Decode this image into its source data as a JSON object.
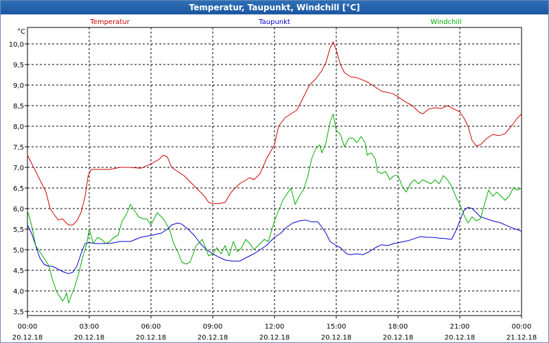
{
  "window_title": "Temperatur, Taupunkt, Windchill [°C]",
  "chart_data": {
    "type": "line",
    "title": "Temperatur, Taupunkt, Windchill [°C]",
    "ylabel": "°C",
    "xlabel": "",
    "ylim": [
      3.4,
      10.4
    ],
    "xlim": [
      0,
      24
    ],
    "grid": true,
    "y_ticks": [
      "3,5",
      "4,0",
      "4,5",
      "5,0",
      "5,5",
      "6,0",
      "6,5",
      "7,0",
      "7,5",
      "8,0",
      "8,5",
      "9,0",
      "9,5",
      "10,0"
    ],
    "y_tick_values": [
      3.5,
      4.0,
      4.5,
      5.0,
      5.5,
      6.0,
      6.5,
      7.0,
      7.5,
      8.0,
      8.5,
      9.0,
      9.5,
      10.0
    ],
    "x_tick_values": [
      0,
      3,
      6,
      9,
      12,
      15,
      18,
      21,
      24
    ],
    "x_tick_times": [
      "00:00",
      "03:00",
      "06:00",
      "09:00",
      "12:00",
      "15:00",
      "18:00",
      "21:00",
      "00:00"
    ],
    "x_tick_dates": [
      "20.12.18",
      "20.12.18",
      "20.12.18",
      "20.12.18",
      "20.12.18",
      "20.12.18",
      "20.12.18",
      "20.12.18",
      "21.12.18"
    ],
    "series": [
      {
        "name": "Temperatur",
        "color": "#cc0000",
        "points": [
          [
            0,
            7.3
          ],
          [
            0.3,
            7.0
          ],
          [
            0.6,
            6.7
          ],
          [
            0.9,
            6.4
          ],
          [
            1.0,
            6.2
          ],
          [
            1.1,
            6.0
          ],
          [
            1.3,
            5.85
          ],
          [
            1.5,
            5.72
          ],
          [
            1.7,
            5.75
          ],
          [
            1.9,
            5.65
          ],
          [
            2.0,
            5.6
          ],
          [
            2.2,
            5.6
          ],
          [
            2.4,
            5.7
          ],
          [
            2.6,
            5.9
          ],
          [
            2.8,
            6.3
          ],
          [
            2.95,
            6.8
          ],
          [
            3.1,
            6.95
          ],
          [
            3.5,
            6.95
          ],
          [
            4.0,
            6.95
          ],
          [
            4.5,
            7.0
          ],
          [
            5.0,
            7.0
          ],
          [
            5.5,
            6.98
          ],
          [
            6.0,
            7.08
          ],
          [
            6.4,
            7.2
          ],
          [
            6.6,
            7.3
          ],
          [
            6.8,
            7.25
          ],
          [
            7.0,
            7.0
          ],
          [
            7.3,
            6.9
          ],
          [
            7.6,
            6.8
          ],
          [
            8.0,
            6.6
          ],
          [
            8.3,
            6.45
          ],
          [
            8.6,
            6.3
          ],
          [
            8.8,
            6.15
          ],
          [
            9.0,
            6.12
          ],
          [
            9.3,
            6.12
          ],
          [
            9.6,
            6.15
          ],
          [
            9.9,
            6.4
          ],
          [
            10.3,
            6.6
          ],
          [
            10.8,
            6.75
          ],
          [
            11.0,
            6.7
          ],
          [
            11.3,
            6.85
          ],
          [
            11.6,
            7.2
          ],
          [
            12.0,
            7.55
          ],
          [
            12.2,
            8.0
          ],
          [
            12.5,
            8.2
          ],
          [
            12.8,
            8.3
          ],
          [
            13.1,
            8.4
          ],
          [
            13.4,
            8.7
          ],
          [
            13.7,
            9.0
          ],
          [
            14.0,
            9.15
          ],
          [
            14.3,
            9.35
          ],
          [
            14.5,
            9.55
          ],
          [
            14.7,
            9.9
          ],
          [
            14.85,
            10.05
          ],
          [
            15.0,
            9.85
          ],
          [
            15.2,
            9.5
          ],
          [
            15.4,
            9.3
          ],
          [
            15.7,
            9.2
          ],
          [
            16.0,
            9.18
          ],
          [
            16.3,
            9.12
          ],
          [
            16.6,
            9.05
          ],
          [
            16.9,
            8.95
          ],
          [
            17.2,
            8.85
          ],
          [
            17.5,
            8.82
          ],
          [
            17.8,
            8.78
          ],
          [
            18.1,
            8.68
          ],
          [
            18.4,
            8.58
          ],
          [
            18.7,
            8.5
          ],
          [
            19.0,
            8.35
          ],
          [
            19.2,
            8.3
          ],
          [
            19.5,
            8.42
          ],
          [
            19.8,
            8.45
          ],
          [
            20.1,
            8.43
          ],
          [
            20.4,
            8.5
          ],
          [
            20.7,
            8.42
          ],
          [
            21.0,
            8.35
          ],
          [
            21.2,
            8.2
          ],
          [
            21.4,
            8.0
          ],
          [
            21.6,
            7.65
          ],
          [
            21.8,
            7.52
          ],
          [
            22.0,
            7.55
          ],
          [
            22.3,
            7.7
          ],
          [
            22.6,
            7.8
          ],
          [
            22.9,
            7.77
          ],
          [
            23.2,
            7.82
          ],
          [
            23.5,
            8.0
          ],
          [
            23.8,
            8.2
          ],
          [
            24.0,
            8.3
          ]
        ]
      },
      {
        "name": "Taupunkt",
        "color": "#0000cc",
        "points": [
          [
            0,
            5.6
          ],
          [
            0.2,
            5.4
          ],
          [
            0.4,
            5.1
          ],
          [
            0.6,
            4.8
          ],
          [
            0.8,
            4.65
          ],
          [
            1.0,
            4.6
          ],
          [
            1.2,
            4.6
          ],
          [
            1.4,
            4.55
          ],
          [
            1.6,
            4.5
          ],
          [
            1.8,
            4.45
          ],
          [
            2.0,
            4.42
          ],
          [
            2.2,
            4.45
          ],
          [
            2.4,
            4.6
          ],
          [
            2.6,
            4.9
          ],
          [
            2.8,
            5.15
          ],
          [
            3.0,
            5.17
          ],
          [
            3.3,
            5.15
          ],
          [
            3.6,
            5.15
          ],
          [
            4.0,
            5.15
          ],
          [
            4.5,
            5.2
          ],
          [
            5.0,
            5.2
          ],
          [
            5.5,
            5.3
          ],
          [
            6.0,
            5.35
          ],
          [
            6.5,
            5.4
          ],
          [
            6.8,
            5.5
          ],
          [
            7.0,
            5.6
          ],
          [
            7.3,
            5.65
          ],
          [
            7.5,
            5.62
          ],
          [
            7.8,
            5.5
          ],
          [
            8.1,
            5.35
          ],
          [
            8.4,
            5.15
          ],
          [
            8.7,
            5.0
          ],
          [
            9.0,
            4.9
          ],
          [
            9.3,
            4.82
          ],
          [
            9.6,
            4.75
          ],
          [
            10.0,
            4.72
          ],
          [
            10.3,
            4.72
          ],
          [
            10.6,
            4.8
          ],
          [
            11.0,
            4.9
          ],
          [
            11.3,
            5.0
          ],
          [
            11.6,
            5.1
          ],
          [
            12.0,
            5.3
          ],
          [
            12.3,
            5.4
          ],
          [
            12.6,
            5.55
          ],
          [
            12.9,
            5.65
          ],
          [
            13.2,
            5.7
          ],
          [
            13.5,
            5.72
          ],
          [
            13.8,
            5.68
          ],
          [
            14.1,
            5.68
          ],
          [
            14.3,
            5.55
          ],
          [
            14.5,
            5.4
          ],
          [
            14.7,
            5.2
          ],
          [
            15.0,
            5.1
          ],
          [
            15.2,
            5.05
          ],
          [
            15.5,
            4.9
          ],
          [
            15.7,
            4.88
          ],
          [
            16.0,
            4.9
          ],
          [
            16.3,
            4.88
          ],
          [
            16.6,
            4.95
          ],
          [
            16.9,
            5.05
          ],
          [
            17.2,
            5.12
          ],
          [
            17.5,
            5.1
          ],
          [
            17.8,
            5.15
          ],
          [
            18.1,
            5.18
          ],
          [
            18.5,
            5.22
          ],
          [
            18.8,
            5.27
          ],
          [
            19.1,
            5.32
          ],
          [
            19.4,
            5.3
          ],
          [
            19.7,
            5.3
          ],
          [
            20.0,
            5.28
          ],
          [
            20.3,
            5.27
          ],
          [
            20.6,
            5.25
          ],
          [
            20.8,
            5.45
          ],
          [
            21.0,
            5.7
          ],
          [
            21.2,
            5.95
          ],
          [
            21.4,
            6.03
          ],
          [
            21.6,
            6.0
          ],
          [
            21.8,
            5.9
          ],
          [
            22.0,
            5.8
          ],
          [
            22.3,
            5.75
          ],
          [
            22.6,
            5.7
          ],
          [
            23.0,
            5.65
          ],
          [
            23.3,
            5.58
          ],
          [
            23.6,
            5.52
          ],
          [
            24.0,
            5.45
          ]
        ]
      },
      {
        "name": "Windchill",
        "color": "#00aa00",
        "points": [
          [
            0,
            5.95
          ],
          [
            0.2,
            5.6
          ],
          [
            0.4,
            5.1
          ],
          [
            0.6,
            4.95
          ],
          [
            0.8,
            4.8
          ],
          [
            1.0,
            4.65
          ],
          [
            1.1,
            4.5
          ],
          [
            1.2,
            4.3
          ],
          [
            1.3,
            4.15
          ],
          [
            1.4,
            4.0
          ],
          [
            1.5,
            3.9
          ],
          [
            1.6,
            3.85
          ],
          [
            1.7,
            3.75
          ],
          [
            1.8,
            3.82
          ],
          [
            1.9,
            3.95
          ],
          [
            2.0,
            3.7
          ],
          [
            2.1,
            3.85
          ],
          [
            2.3,
            4.1
          ],
          [
            2.5,
            4.45
          ],
          [
            2.7,
            4.85
          ],
          [
            2.8,
            5.0
          ],
          [
            2.9,
            5.2
          ],
          [
            3.0,
            5.5
          ],
          [
            3.2,
            5.15
          ],
          [
            3.4,
            5.3
          ],
          [
            3.6,
            5.25
          ],
          [
            3.8,
            5.15
          ],
          [
            4.0,
            5.2
          ],
          [
            4.2,
            5.3
          ],
          [
            4.4,
            5.35
          ],
          [
            4.6,
            5.7
          ],
          [
            4.8,
            5.85
          ],
          [
            5.0,
            6.1
          ],
          [
            5.2,
            5.95
          ],
          [
            5.4,
            5.8
          ],
          [
            5.6,
            5.75
          ],
          [
            5.8,
            5.75
          ],
          [
            6.0,
            5.6
          ],
          [
            6.3,
            5.9
          ],
          [
            6.6,
            5.75
          ],
          [
            6.9,
            5.5
          ],
          [
            7.1,
            5.15
          ],
          [
            7.3,
            4.95
          ],
          [
            7.5,
            4.7
          ],
          [
            7.7,
            4.65
          ],
          [
            7.9,
            4.7
          ],
          [
            8.2,
            5.1
          ],
          [
            8.5,
            5.25
          ],
          [
            8.8,
            4.85
          ],
          [
            9.0,
            4.9
          ],
          [
            9.2,
            5.05
          ],
          [
            9.4,
            4.9
          ],
          [
            9.6,
            5.1
          ],
          [
            9.8,
            4.85
          ],
          [
            10.0,
            5.2
          ],
          [
            10.2,
            4.95
          ],
          [
            10.4,
            5.05
          ],
          [
            10.6,
            5.25
          ],
          [
            10.8,
            5.15
          ],
          [
            11.0,
            5.0
          ],
          [
            11.2,
            5.1
          ],
          [
            11.5,
            5.25
          ],
          [
            11.7,
            5.2
          ],
          [
            12.0,
            5.7
          ],
          [
            12.2,
            5.95
          ],
          [
            12.4,
            6.2
          ],
          [
            12.6,
            6.35
          ],
          [
            12.8,
            6.5
          ],
          [
            13.0,
            6.1
          ],
          [
            13.2,
            6.3
          ],
          [
            13.4,
            6.45
          ],
          [
            13.6,
            6.75
          ],
          [
            13.8,
            7.2
          ],
          [
            14.0,
            7.45
          ],
          [
            14.2,
            7.55
          ],
          [
            14.3,
            7.35
          ],
          [
            14.5,
            7.6
          ],
          [
            14.7,
            8.1
          ],
          [
            14.85,
            8.3
          ],
          [
            15.0,
            7.9
          ],
          [
            15.2,
            7.8
          ],
          [
            15.4,
            7.5
          ],
          [
            15.6,
            7.7
          ],
          [
            15.8,
            7.72
          ],
          [
            16.0,
            7.6
          ],
          [
            16.2,
            7.75
          ],
          [
            16.4,
            7.6
          ],
          [
            16.5,
            7.3
          ],
          [
            16.7,
            7.35
          ],
          [
            16.9,
            7.2
          ],
          [
            17.0,
            6.9
          ],
          [
            17.2,
            6.85
          ],
          [
            17.4,
            6.9
          ],
          [
            17.6,
            6.7
          ],
          [
            17.8,
            6.8
          ],
          [
            18.0,
            6.8
          ],
          [
            18.2,
            6.55
          ],
          [
            18.4,
            6.4
          ],
          [
            18.6,
            6.6
          ],
          [
            18.8,
            6.7
          ],
          [
            19.0,
            6.6
          ],
          [
            19.2,
            6.7
          ],
          [
            19.4,
            6.65
          ],
          [
            19.6,
            6.6
          ],
          [
            19.8,
            6.7
          ],
          [
            20.0,
            6.6
          ],
          [
            20.2,
            6.8
          ],
          [
            20.4,
            6.7
          ],
          [
            20.6,
            6.55
          ],
          [
            20.8,
            6.3
          ],
          [
            21.0,
            6.1
          ],
          [
            21.2,
            5.85
          ],
          [
            21.4,
            5.65
          ],
          [
            21.6,
            5.8
          ],
          [
            21.8,
            5.7
          ],
          [
            22.0,
            5.75
          ],
          [
            22.2,
            6.1
          ],
          [
            22.4,
            6.45
          ],
          [
            22.6,
            6.3
          ],
          [
            22.8,
            6.4
          ],
          [
            23.0,
            6.3
          ],
          [
            23.2,
            6.2
          ],
          [
            23.4,
            6.3
          ],
          [
            23.6,
            6.5
          ],
          [
            23.8,
            6.45
          ],
          [
            24.0,
            6.5
          ]
        ]
      }
    ]
  }
}
